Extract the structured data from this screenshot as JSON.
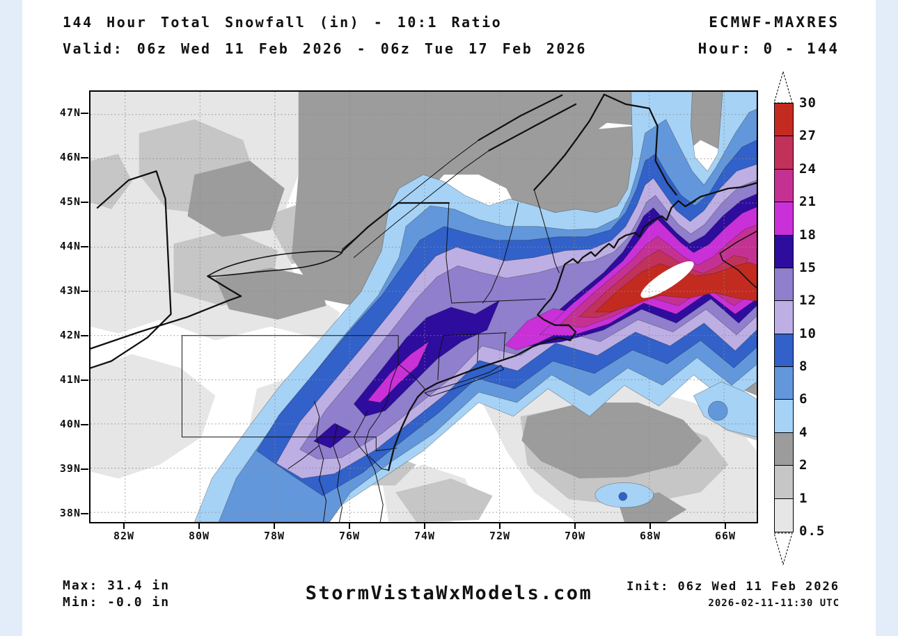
{
  "page": {
    "background": "#ffffff",
    "side_strip_color": "#E3EDFA"
  },
  "header": {
    "title_line1": "144 Hour Total Snowfall (in) - 10:1 Ratio",
    "title_line2": "Valid: 06z Wed 11 Feb 2026 - 06z Tue 17 Feb 2026",
    "model": "ECMWF-MAXRES",
    "hour_range": "Hour: 0 - 144"
  },
  "footer": {
    "max_label": "Max: 31.4 in",
    "min_label": "Min: -0.0 in",
    "site": "StormVistaWxModels.com",
    "init_label": "Init: 06z Wed 11 Feb 2026",
    "init_timestamp": "2026-02-11-11:30 UTC"
  },
  "map": {
    "base_color": "#FFFFFF",
    "lat_labels": [
      "47N",
      "46N",
      "45N",
      "44N",
      "43N",
      "42N",
      "41N",
      "40N",
      "39N",
      "38N"
    ],
    "lon_labels": [
      "82W",
      "80W",
      "78W",
      "76W",
      "74W",
      "72W",
      "70W",
      "68W",
      "66W"
    ]
  },
  "colorbar": {
    "labels": [
      "30",
      "27",
      "24",
      "21",
      "18",
      "15",
      "12",
      "10",
      "8",
      "6",
      "4",
      "2",
      "1",
      "0.5"
    ],
    "above_max_color": "#FFFFFF",
    "below_min_color": "#FFFFFF",
    "segments": [
      {
        "range": "27-30",
        "color": "#C32B20"
      },
      {
        "range": "24-27",
        "color": "#C23159"
      },
      {
        "range": "21-24",
        "color": "#C53193"
      },
      {
        "range": "18-21",
        "color": "#C930D8"
      },
      {
        "range": "15-18",
        "color": "#2E0C9E"
      },
      {
        "range": "12-15",
        "color": "#8F7FCC"
      },
      {
        "range": "10-12",
        "color": "#BDAFE3"
      },
      {
        "range": "8-10",
        "color": "#3161C9"
      },
      {
        "range": "6-8",
        "color": "#6397DB"
      },
      {
        "range": "4-6",
        "color": "#A6D2F5"
      },
      {
        "range": "2-4",
        "color": "#9C9C9C"
      },
      {
        "range": "1-2",
        "color": "#C6C6C6"
      },
      {
        "range": "0.5-1",
        "color": "#E6E6E6"
      }
    ]
  },
  "chart_data": {
    "type": "heatmap",
    "subtype": "filled-contour-snowfall-map",
    "title": "144 Hour Total Snowfall (in) - 10:1 Ratio",
    "valid": "06z Wed 11 Feb 2026 - 06z Tue 17 Feb 2026",
    "model": "ECMWF-MAXRES",
    "forecast_hours": "0 - 144",
    "units": "inches",
    "lat_range_n": [
      38,
      47
    ],
    "lon_range_w": [
      66,
      82
    ],
    "contour_levels_in": [
      0.5,
      1,
      2,
      4,
      6,
      8,
      10,
      12,
      15,
      18,
      21,
      24,
      27,
      30
    ],
    "level_colors": [
      "#E6E6E6",
      "#C6C6C6",
      "#9C9C9C",
      "#A6D2F5",
      "#6397DB",
      "#3161C9",
      "#BDAFE3",
      "#8F7FCC",
      "#2E0C9E",
      "#C930D8",
      "#C53193",
      "#C23159",
      "#C32B20",
      "#FFFFFF"
    ],
    "max_value_in": 31.4,
    "min_value_in": -0.0,
    "init": "06z Wed 11 Feb 2026",
    "init_utc": "2026-02-11-11:30 UTC",
    "notable_features": [
      {
        "region_lat_lon": [
          43.7,
          67.5
        ],
        "value_in": "30+",
        "note": "maximum band over Gulf of Maine / Bay of Fundy"
      },
      {
        "region_lat_lon": [
          41.8,
          71.5
        ],
        "value_in": "18-21",
        "note": "magenta core southern New England"
      },
      {
        "region_lat_lon": [
          41.0,
          73.8
        ],
        "value_in": "18-21",
        "note": "magenta core near NYC / CT"
      },
      {
        "region_lat_lon": [
          45.5,
          72.0
        ],
        "value_in": "2-4",
        "note": "gray shield Quebec / interior Maine"
      }
    ]
  }
}
